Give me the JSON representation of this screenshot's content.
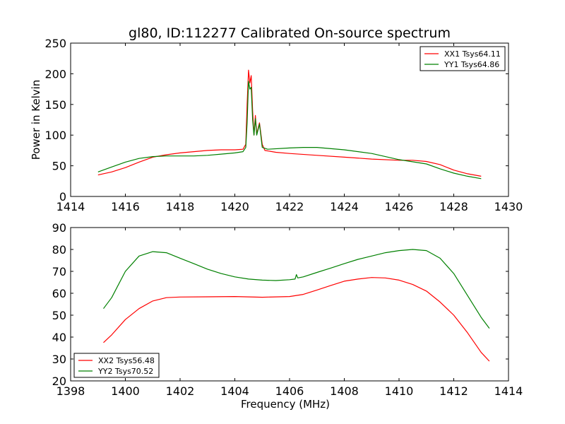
{
  "figure": {
    "title": "gl80, ID:112277 Calibrated On-source spectrum"
  },
  "colors": {
    "xx": "#ff0000",
    "yy": "#008000",
    "axis": "#000000"
  },
  "chart_data": [
    {
      "type": "line",
      "ylabel": "Power in Kelvin",
      "xlabel": "",
      "xlim": [
        1414,
        1430
      ],
      "ylim": [
        0,
        250
      ],
      "xticks": [
        1414,
        1416,
        1418,
        1420,
        1422,
        1424,
        1426,
        1428,
        1430
      ],
      "yticks": [
        0,
        50,
        100,
        150,
        200,
        250
      ],
      "legend_position": "top-right",
      "series": [
        {
          "name": "XX1 Tsys64.11",
          "color": "#ff0000",
          "points": [
            [
              1415.0,
              35
            ],
            [
              1415.5,
              40
            ],
            [
              1416.0,
              47
            ],
            [
              1416.5,
              56
            ],
            [
              1417.0,
              64
            ],
            [
              1417.5,
              68
            ],
            [
              1418.0,
              71
            ],
            [
              1418.5,
              73
            ],
            [
              1419.0,
              75
            ],
            [
              1419.5,
              76
            ],
            [
              1420.0,
              76
            ],
            [
              1420.3,
              77
            ],
            [
              1420.4,
              85
            ],
            [
              1420.45,
              150
            ],
            [
              1420.5,
              206
            ],
            [
              1420.55,
              185
            ],
            [
              1420.6,
              197
            ],
            [
              1420.65,
              140
            ],
            [
              1420.7,
              100
            ],
            [
              1420.75,
              132
            ],
            [
              1420.8,
              102
            ],
            [
              1420.9,
              120
            ],
            [
              1421.0,
              85
            ],
            [
              1421.1,
              75
            ],
            [
              1421.5,
              72
            ],
            [
              1422.0,
              70
            ],
            [
              1423.0,
              67
            ],
            [
              1424.0,
              64
            ],
            [
              1425.0,
              61
            ],
            [
              1426.0,
              59
            ],
            [
              1426.5,
              59
            ],
            [
              1427.0,
              57
            ],
            [
              1427.5,
              52
            ],
            [
              1428.0,
              43
            ],
            [
              1428.5,
              37
            ],
            [
              1429.0,
              33
            ]
          ]
        },
        {
          "name": "YY1 Tsys64.86",
          "color": "#008000",
          "points": [
            [
              1415.0,
              40
            ],
            [
              1415.5,
              48
            ],
            [
              1416.0,
              56
            ],
            [
              1416.5,
              62
            ],
            [
              1417.0,
              65
            ],
            [
              1417.5,
              66
            ],
            [
              1418.0,
              66
            ],
            [
              1418.5,
              66
            ],
            [
              1419.0,
              67
            ],
            [
              1419.5,
              69
            ],
            [
              1420.0,
              71
            ],
            [
              1420.3,
              73
            ],
            [
              1420.4,
              80
            ],
            [
              1420.45,
              120
            ],
            [
              1420.5,
              188
            ],
            [
              1420.55,
              175
            ],
            [
              1420.6,
              178
            ],
            [
              1420.65,
              125
            ],
            [
              1420.7,
              100
            ],
            [
              1420.75,
              127
            ],
            [
              1420.8,
              100
            ],
            [
              1420.9,
              118
            ],
            [
              1421.0,
              80
            ],
            [
              1421.2,
              77
            ],
            [
              1422.0,
              79
            ],
            [
              1422.5,
              80
            ],
            [
              1423.0,
              80
            ],
            [
              1424.0,
              76
            ],
            [
              1425.0,
              70
            ],
            [
              1426.0,
              60
            ],
            [
              1427.0,
              53
            ],
            [
              1427.5,
              45
            ],
            [
              1428.0,
              38
            ],
            [
              1428.5,
              33
            ],
            [
              1429.0,
              29
            ]
          ]
        }
      ]
    },
    {
      "type": "line",
      "ylabel": "",
      "xlabel": "Frequency (MHz)",
      "xlim": [
        1398,
        1414
      ],
      "ylim": [
        20,
        90
      ],
      "xticks": [
        1398,
        1400,
        1402,
        1404,
        1406,
        1408,
        1410,
        1412,
        1414
      ],
      "yticks": [
        20,
        30,
        40,
        50,
        60,
        70,
        80,
        90
      ],
      "legend_position": "bottom-left",
      "series": [
        {
          "name": "XX2 Tsys56.48",
          "color": "#ff0000",
          "points": [
            [
              1399.2,
              37.5
            ],
            [
              1399.5,
              41
            ],
            [
              1400.0,
              48
            ],
            [
              1400.5,
              53
            ],
            [
              1401.0,
              56.5
            ],
            [
              1401.5,
              58
            ],
            [
              1402.0,
              58.3
            ],
            [
              1403.0,
              58.4
            ],
            [
              1404.0,
              58.5
            ],
            [
              1405.0,
              58.2
            ],
            [
              1406.0,
              58.5
            ],
            [
              1406.5,
              59.5
            ],
            [
              1407.0,
              61.5
            ],
            [
              1407.5,
              63.5
            ],
            [
              1408.0,
              65.5
            ],
            [
              1408.5,
              66.5
            ],
            [
              1409.0,
              67.2
            ],
            [
              1409.5,
              67
            ],
            [
              1410.0,
              66
            ],
            [
              1410.5,
              64
            ],
            [
              1411.0,
              61
            ],
            [
              1411.5,
              56
            ],
            [
              1412.0,
              50
            ],
            [
              1412.5,
              42
            ],
            [
              1413.0,
              33
            ],
            [
              1413.3,
              29
            ]
          ]
        },
        {
          "name": "YY2 Tsys70.52",
          "color": "#008000",
          "points": [
            [
              1399.2,
              53
            ],
            [
              1399.5,
              58
            ],
            [
              1400.0,
              70
            ],
            [
              1400.5,
              77
            ],
            [
              1401.0,
              79
            ],
            [
              1401.5,
              78.5
            ],
            [
              1402.0,
              76
            ],
            [
              1402.5,
              73.5
            ],
            [
              1403.0,
              71
            ],
            [
              1403.5,
              69
            ],
            [
              1404.0,
              67.5
            ],
            [
              1404.5,
              66.5
            ],
            [
              1405.0,
              66
            ],
            [
              1405.5,
              65.8
            ],
            [
              1406.0,
              66.2
            ],
            [
              1406.2,
              66.5
            ],
            [
              1406.25,
              68.5
            ],
            [
              1406.3,
              67
            ],
            [
              1406.5,
              67.5
            ],
            [
              1407.0,
              69.5
            ],
            [
              1407.5,
              71.5
            ],
            [
              1408.0,
              73.5
            ],
            [
              1408.5,
              75.5
            ],
            [
              1409.0,
              77
            ],
            [
              1409.5,
              78.5
            ],
            [
              1410.0,
              79.5
            ],
            [
              1410.5,
              80
            ],
            [
              1411.0,
              79.5
            ],
            [
              1411.5,
              76
            ],
            [
              1412.0,
              69
            ],
            [
              1412.5,
              59
            ],
            [
              1413.0,
              49
            ],
            [
              1413.3,
              44
            ]
          ]
        }
      ]
    }
  ]
}
